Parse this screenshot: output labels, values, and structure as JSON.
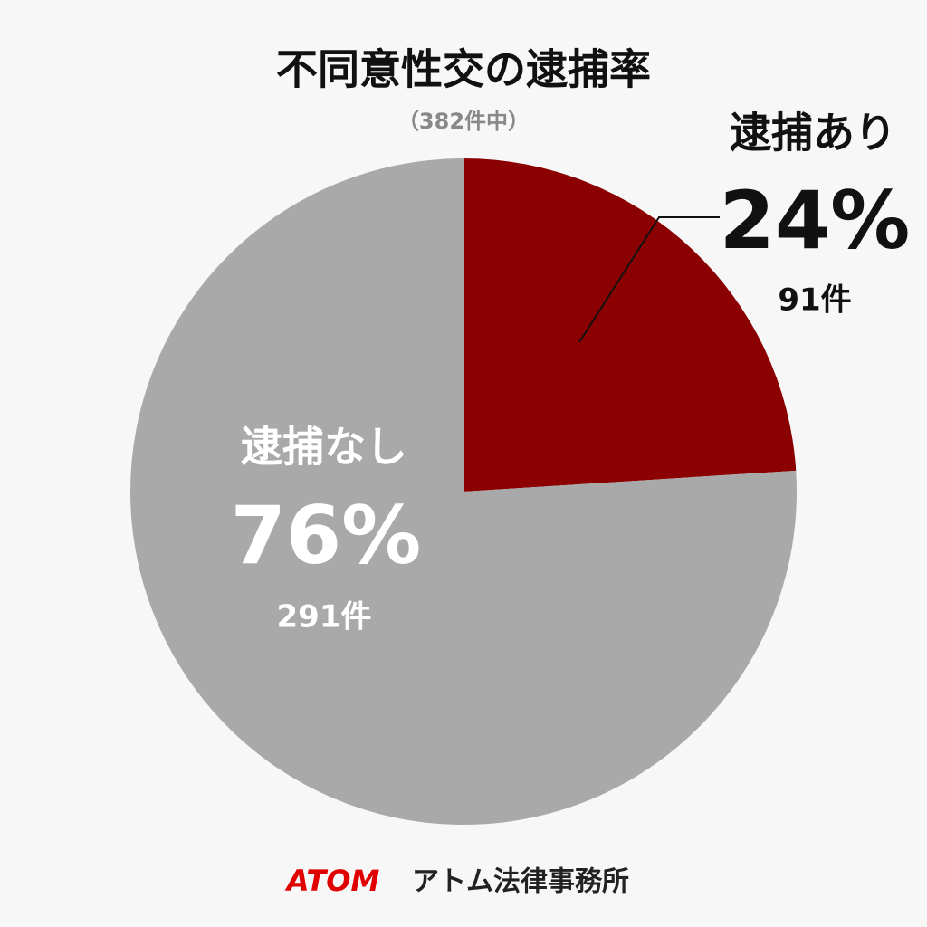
{
  "chart_data": {
    "type": "pie",
    "title": "不同意性交の逮捕率",
    "subtitle": "（382件中）",
    "categories": [
      "逮捕あり",
      "逮捕なし"
    ],
    "values": [
      24,
      76
    ],
    "value_labels": [
      "24%",
      "76%"
    ],
    "count_labels": [
      "91件",
      "291件"
    ],
    "colors": [
      "#8b0000",
      "#a9a9a9"
    ]
  },
  "footer": {
    "brand": "ATOM",
    "name": "アトム法律事務所"
  }
}
